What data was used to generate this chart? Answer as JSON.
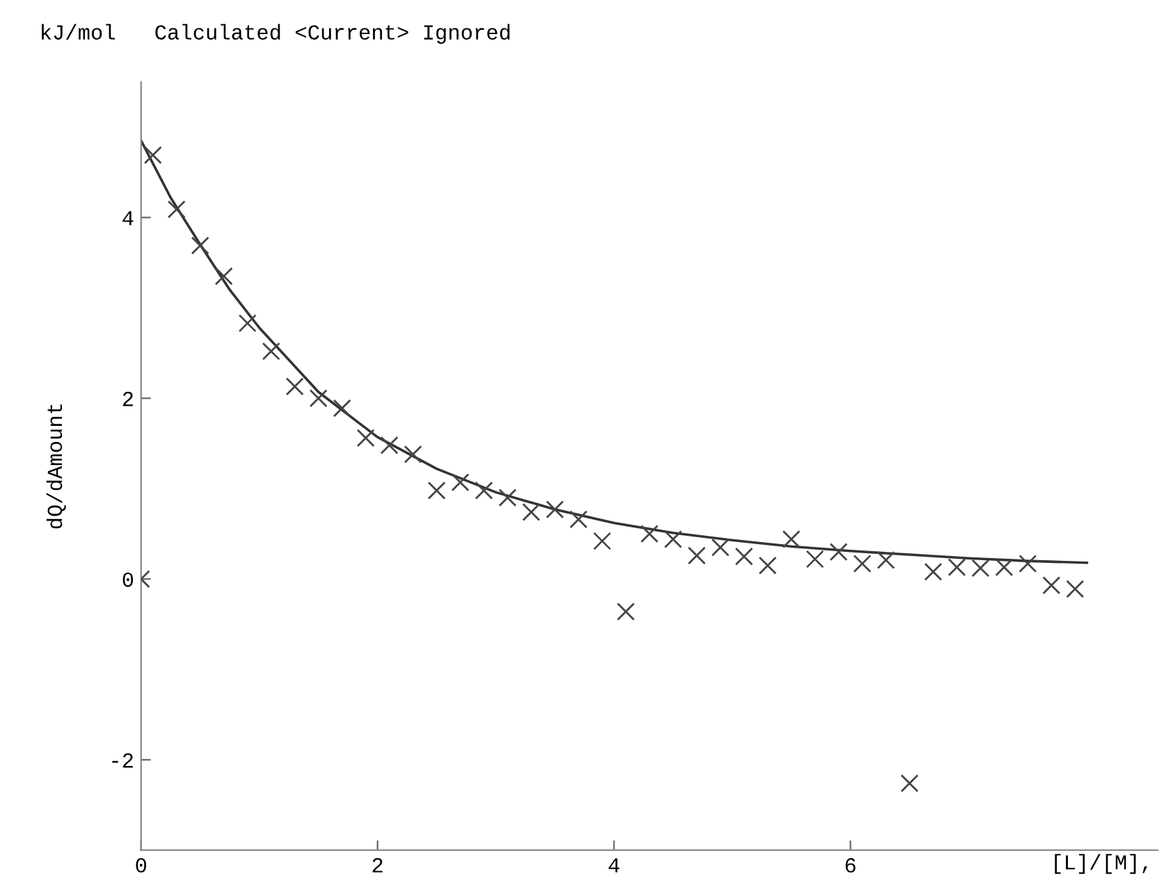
{
  "chart_data": {
    "type": "scatter",
    "title": "kJ/mol   Calculated <Current> Ignored",
    "xlabel": "[L]/[M],",
    "ylabel": "dQ/dAmount",
    "xlim": [
      0,
      8.6
    ],
    "ylim": [
      -3,
      5.5
    ],
    "xticks": [
      0,
      2,
      4,
      6
    ],
    "yticks": [
      -2,
      0,
      2,
      4
    ],
    "grid": false,
    "legend": false,
    "series": [
      {
        "marker": "cross",
        "color": "#444444",
        "x": [
          0,
          0.1,
          0.3,
          0.5,
          0.7,
          0.9,
          1.1,
          1.3,
          1.5,
          1.7,
          1.9,
          2.1,
          2.3,
          2.5,
          2.7,
          2.9,
          3.1,
          3.3,
          3.5,
          3.7,
          3.9,
          4.1,
          4.3,
          4.5,
          4.7,
          4.9,
          5.1,
          5.3,
          5.5,
          5.7,
          5.9,
          6.1,
          6.3,
          6.5,
          6.7,
          6.9,
          7.1,
          7.3,
          7.5,
          7.7,
          7.9
        ],
        "values": [
          0,
          4.69,
          4.09,
          3.69,
          3.35,
          2.83,
          2.52,
          2.13,
          2.0,
          1.89,
          1.56,
          1.48,
          1.38,
          0.98,
          1.07,
          0.98,
          0.9,
          0.74,
          0.77,
          0.66,
          0.42,
          -0.36,
          0.5,
          0.44,
          0.26,
          0.35,
          0.25,
          0.15,
          0.44,
          0.22,
          0.3,
          0.17,
          0.21,
          -2.26,
          0.08,
          0.13,
          0.12,
          0.13,
          0.17,
          -0.07,
          -0.11
        ]
      },
      {
        "type": "line",
        "color": "#333333",
        "line_style": "solid",
        "x": [
          0,
          0.25,
          0.5,
          0.75,
          1,
          1.5,
          2,
          2.5,
          3,
          3.5,
          4,
          4.5,
          5,
          5.5,
          6,
          6.5,
          7,
          7.5,
          8
        ],
        "values": [
          4.85,
          4.22,
          3.7,
          3.2,
          2.78,
          2.07,
          1.57,
          1.22,
          0.96,
          0.77,
          0.62,
          0.51,
          0.43,
          0.36,
          0.31,
          0.27,
          0.23,
          0.2,
          0.18
        ]
      }
    ]
  }
}
